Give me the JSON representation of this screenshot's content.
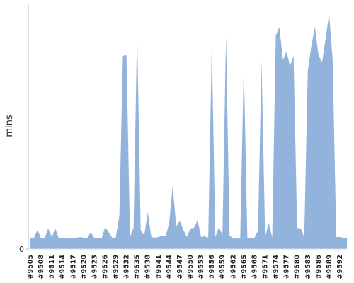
{
  "chart_data": {
    "type": "area",
    "y_label": "mins",
    "color": "#92b4dc",
    "categories": [
      "#9505",
      null,
      null,
      "#9508",
      null,
      null,
      "#9511",
      null,
      null,
      "#9514",
      null,
      null,
      "#9517",
      null,
      null,
      "#9520",
      null,
      null,
      "#9523",
      null,
      null,
      "#9526",
      null,
      null,
      "#9529",
      null,
      null,
      "#9532",
      null,
      null,
      "#9535",
      null,
      null,
      "#9538",
      null,
      null,
      "#9541",
      null,
      null,
      "#9544",
      null,
      null,
      "#9547",
      null,
      null,
      "#9550",
      null,
      null,
      "#9553",
      null,
      null,
      "#9556",
      null,
      null,
      "#9559",
      null,
      null,
      "#9562",
      null,
      null,
      "#9565",
      null,
      null,
      "#9568",
      null,
      null,
      "#9571",
      null,
      null,
      "#9574",
      null,
      null,
      "#9577",
      null,
      null,
      "#9580",
      null,
      null,
      "#9583",
      null,
      null,
      "#9586",
      null,
      null,
      "#9589",
      null,
      null,
      "#9592",
      null,
      null
    ],
    "values": [
      4.3,
      4.6,
      7.8,
      4.3,
      4.3,
      8.4,
      4.9,
      8.4,
      4.3,
      4.6,
      4.6,
      4.3,
      4.3,
      4.6,
      4.9,
      4.6,
      4.6,
      6.9,
      4.3,
      4.6,
      4.3,
      8.9,
      6.9,
      4.6,
      4.6,
      13.5,
      78.7,
      79,
      4.9,
      8.6,
      89.3,
      7.8,
      5.5,
      15,
      4.9,
      4.6,
      4.9,
      5.5,
      5.2,
      10.4,
      25.9,
      9.2,
      11.5,
      7.8,
      4.9,
      8.4,
      8.6,
      11.8,
      4.9,
      5.2,
      4.6,
      83.6,
      4.9,
      8.9,
      5.8,
      87,
      5.5,
      4.3,
      4.3,
      4.6,
      75.5,
      4.6,
      4.6,
      4.6,
      7.5,
      76.4,
      4.9,
      10.7,
      4.6,
      87,
      90.5,
      77,
      80.4,
      74.6,
      78.7,
      8.6,
      8.4,
      4.9,
      72.6,
      82.7,
      90.5,
      79,
      76,
      85.6,
      95.7,
      77,
      4.9,
      4.9,
      4.6,
      4.6
    ],
    "ylim": [
      0,
      100
    ],
    "yticks": [
      0
    ]
  }
}
